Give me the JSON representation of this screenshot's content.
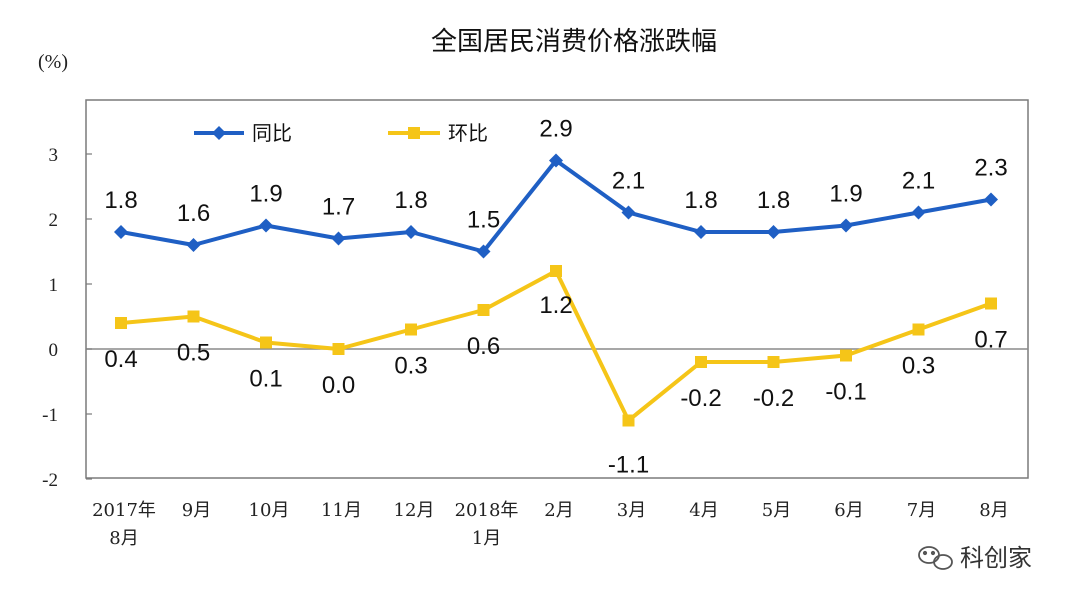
{
  "chart_data": {
    "type": "line",
    "title": "全国居民消费价格涨跌幅",
    "unit_label": "(%)",
    "xlabel": "",
    "ylabel": "(%)",
    "ylim": [
      -2,
      4
    ],
    "yticks": [
      "3",
      "2",
      "1",
      "0",
      "-1",
      "-2"
    ],
    "ytick_values": [
      3,
      2,
      1,
      0,
      -1,
      -2
    ],
    "categories": [
      [
        "2017年",
        "8月"
      ],
      [
        "9月"
      ],
      [
        "10月"
      ],
      [
        "11月"
      ],
      [
        "12月"
      ],
      [
        "2018年",
        "1月"
      ],
      [
        "2月"
      ],
      [
        "3月"
      ],
      [
        "4月"
      ],
      [
        "5月"
      ],
      [
        "6月"
      ],
      [
        "7月"
      ],
      [
        "8月"
      ]
    ],
    "series": [
      {
        "name": "同比",
        "color": "#1f5fc4",
        "marker": "diamond",
        "values": [
          1.8,
          1.6,
          1.9,
          1.7,
          1.8,
          1.5,
          2.9,
          2.1,
          1.8,
          1.8,
          1.9,
          2.1,
          2.3
        ],
        "labels": [
          "1.8",
          "1.6",
          "1.9",
          "1.7",
          "1.8",
          "1.5",
          "2.9",
          "2.1",
          "1.8",
          "1.8",
          "1.9",
          "2.1",
          "2.3"
        ]
      },
      {
        "name": "环比",
        "color": "#f5c518",
        "marker": "square",
        "values": [
          0.4,
          0.5,
          0.1,
          0.0,
          0.3,
          0.6,
          1.2,
          -1.1,
          -0.2,
          -0.2,
          -0.1,
          0.3,
          0.7
        ],
        "labels": [
          "0.4",
          "0.5",
          "0.1",
          "0.0",
          "0.3",
          "0.6",
          "1.2",
          "-1.1",
          "-0.2",
          "-0.2",
          "-0.1",
          "0.3",
          "0.7"
        ]
      }
    ],
    "legend": "top-left",
    "grid": false
  },
  "watermark": {
    "text": "科创家",
    "icon": "wechat-icon"
  }
}
